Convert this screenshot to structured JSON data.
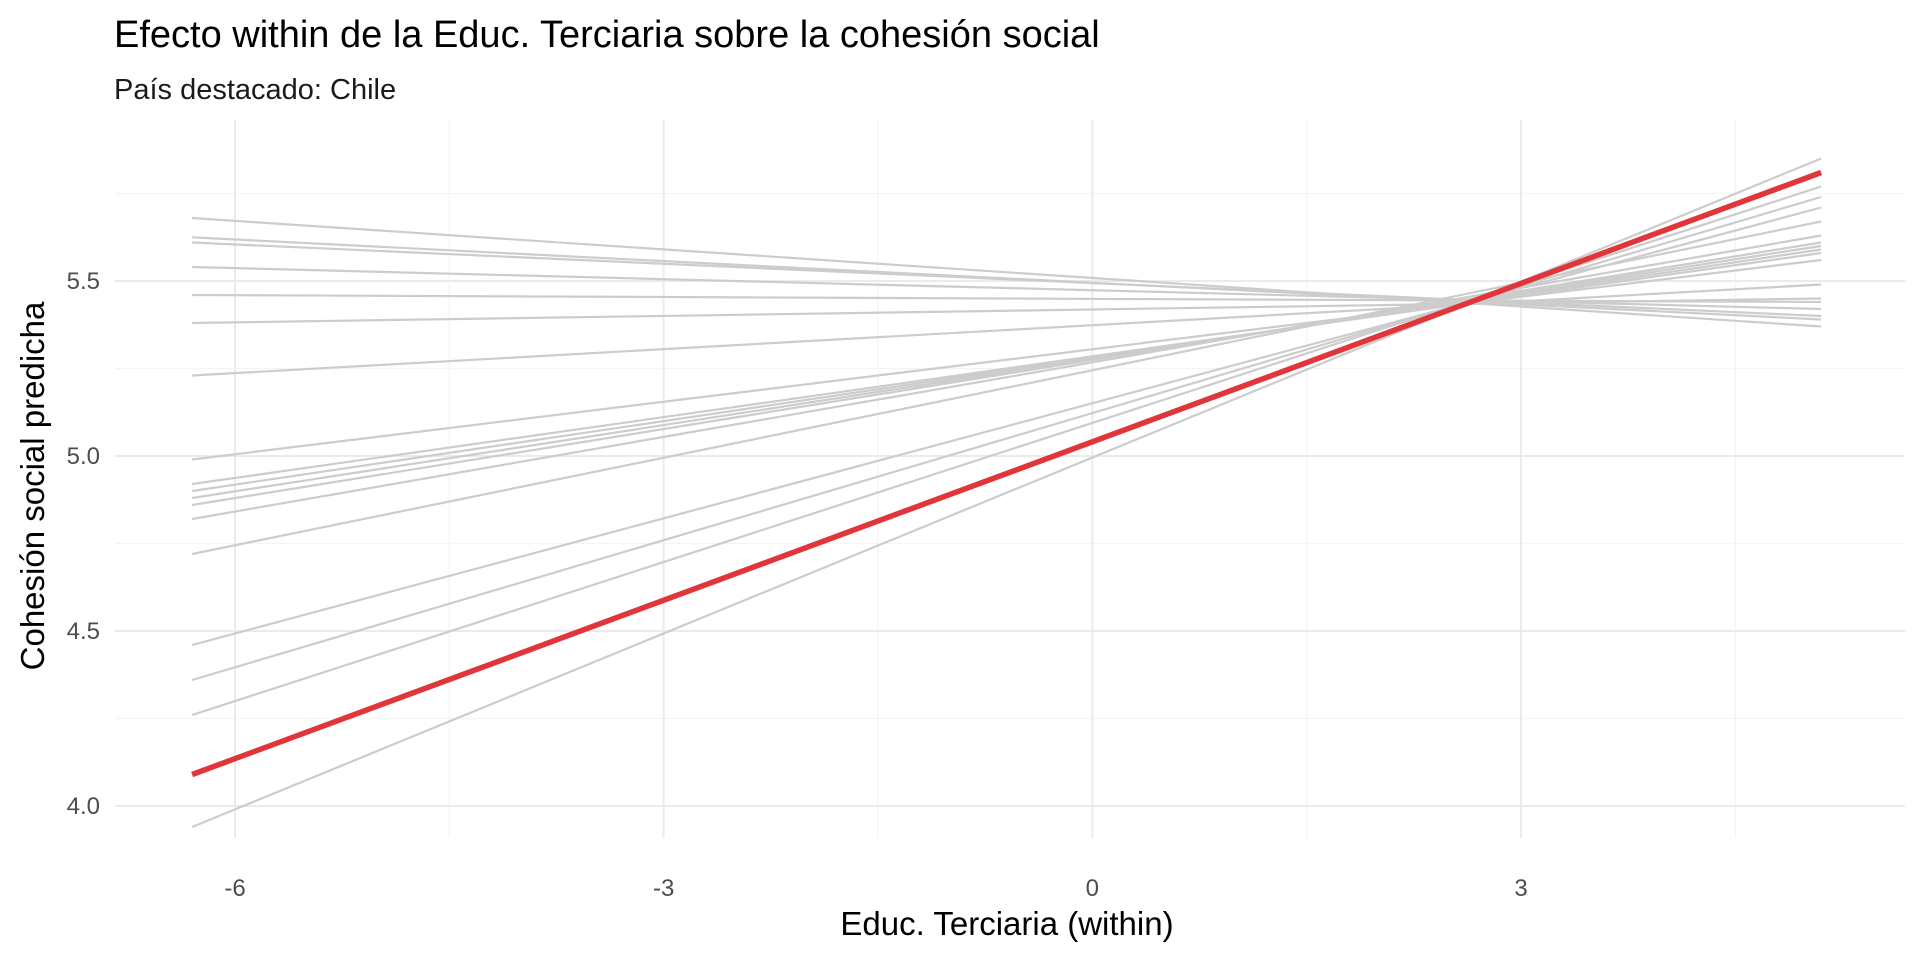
{
  "chart_data": {
    "type": "line",
    "title": "Efecto within de la Educ. Terciaria sobre la cohesión social",
    "subtitle": "País destacado: Chile",
    "xlabel": "Educ. Terciaria (within)",
    "ylabel": "Cohesión social predicha",
    "xlim": [
      -6.3,
      5.1
    ],
    "ylim": [
      3.92,
      5.88
    ],
    "x_ticks": [
      -6,
      -3,
      0,
      3
    ],
    "x_tick_labels": [
      "-6",
      "-3",
      "0",
      "3"
    ],
    "y_ticks": [
      4.0,
      4.5,
      5.0,
      5.5
    ],
    "y_tick_labels": [
      "4.0",
      "4.5",
      "5.0",
      "5.5"
    ],
    "grid": true,
    "legend": "none",
    "highlight": {
      "name": "Chile",
      "color": "#e0363b",
      "x": [
        -6.3,
        5.1
      ],
      "y": [
        4.09,
        5.81
      ]
    },
    "background_color": "#cccccc",
    "background_lines": [
      {
        "x": [
          -6.3,
          5.1
        ],
        "y": [
          5.68,
          5.37
        ]
      },
      {
        "x": [
          -6.3,
          5.1
        ],
        "y": [
          5.625,
          5.39
        ]
      },
      {
        "x": [
          -6.3,
          5.1
        ],
        "y": [
          5.61,
          5.4
        ]
      },
      {
        "x": [
          -6.3,
          5.1
        ],
        "y": [
          5.54,
          5.42
        ]
      },
      {
        "x": [
          -6.3,
          5.1
        ],
        "y": [
          5.46,
          5.44
        ]
      },
      {
        "x": [
          -6.3,
          5.1
        ],
        "y": [
          5.38,
          5.45
        ]
      },
      {
        "x": [
          -6.3,
          5.1
        ],
        "y": [
          5.23,
          5.49
        ]
      },
      {
        "x": [
          -6.3,
          5.1
        ],
        "y": [
          4.99,
          5.56
        ]
      },
      {
        "x": [
          -6.3,
          5.1
        ],
        "y": [
          4.92,
          5.58
        ]
      },
      {
        "x": [
          -6.3,
          5.1
        ],
        "y": [
          4.9,
          5.59
        ]
      },
      {
        "x": [
          -6.3,
          5.1
        ],
        "y": [
          4.88,
          5.6
        ]
      },
      {
        "x": [
          -6.3,
          5.1
        ],
        "y": [
          4.86,
          5.61
        ]
      },
      {
        "x": [
          -6.3,
          5.1
        ],
        "y": [
          4.82,
          5.63
        ]
      },
      {
        "x": [
          -6.3,
          5.1
        ],
        "y": [
          4.72,
          5.67
        ]
      },
      {
        "x": [
          -6.3,
          5.1
        ],
        "y": [
          4.46,
          5.71
        ]
      },
      {
        "x": [
          -6.3,
          5.1
        ],
        "y": [
          4.36,
          5.74
        ]
      },
      {
        "x": [
          -6.3,
          5.1
        ],
        "y": [
          4.26,
          5.77
        ]
      },
      {
        "x": [
          -6.3,
          5.1
        ],
        "y": [
          3.94,
          5.85
        ]
      }
    ]
  }
}
